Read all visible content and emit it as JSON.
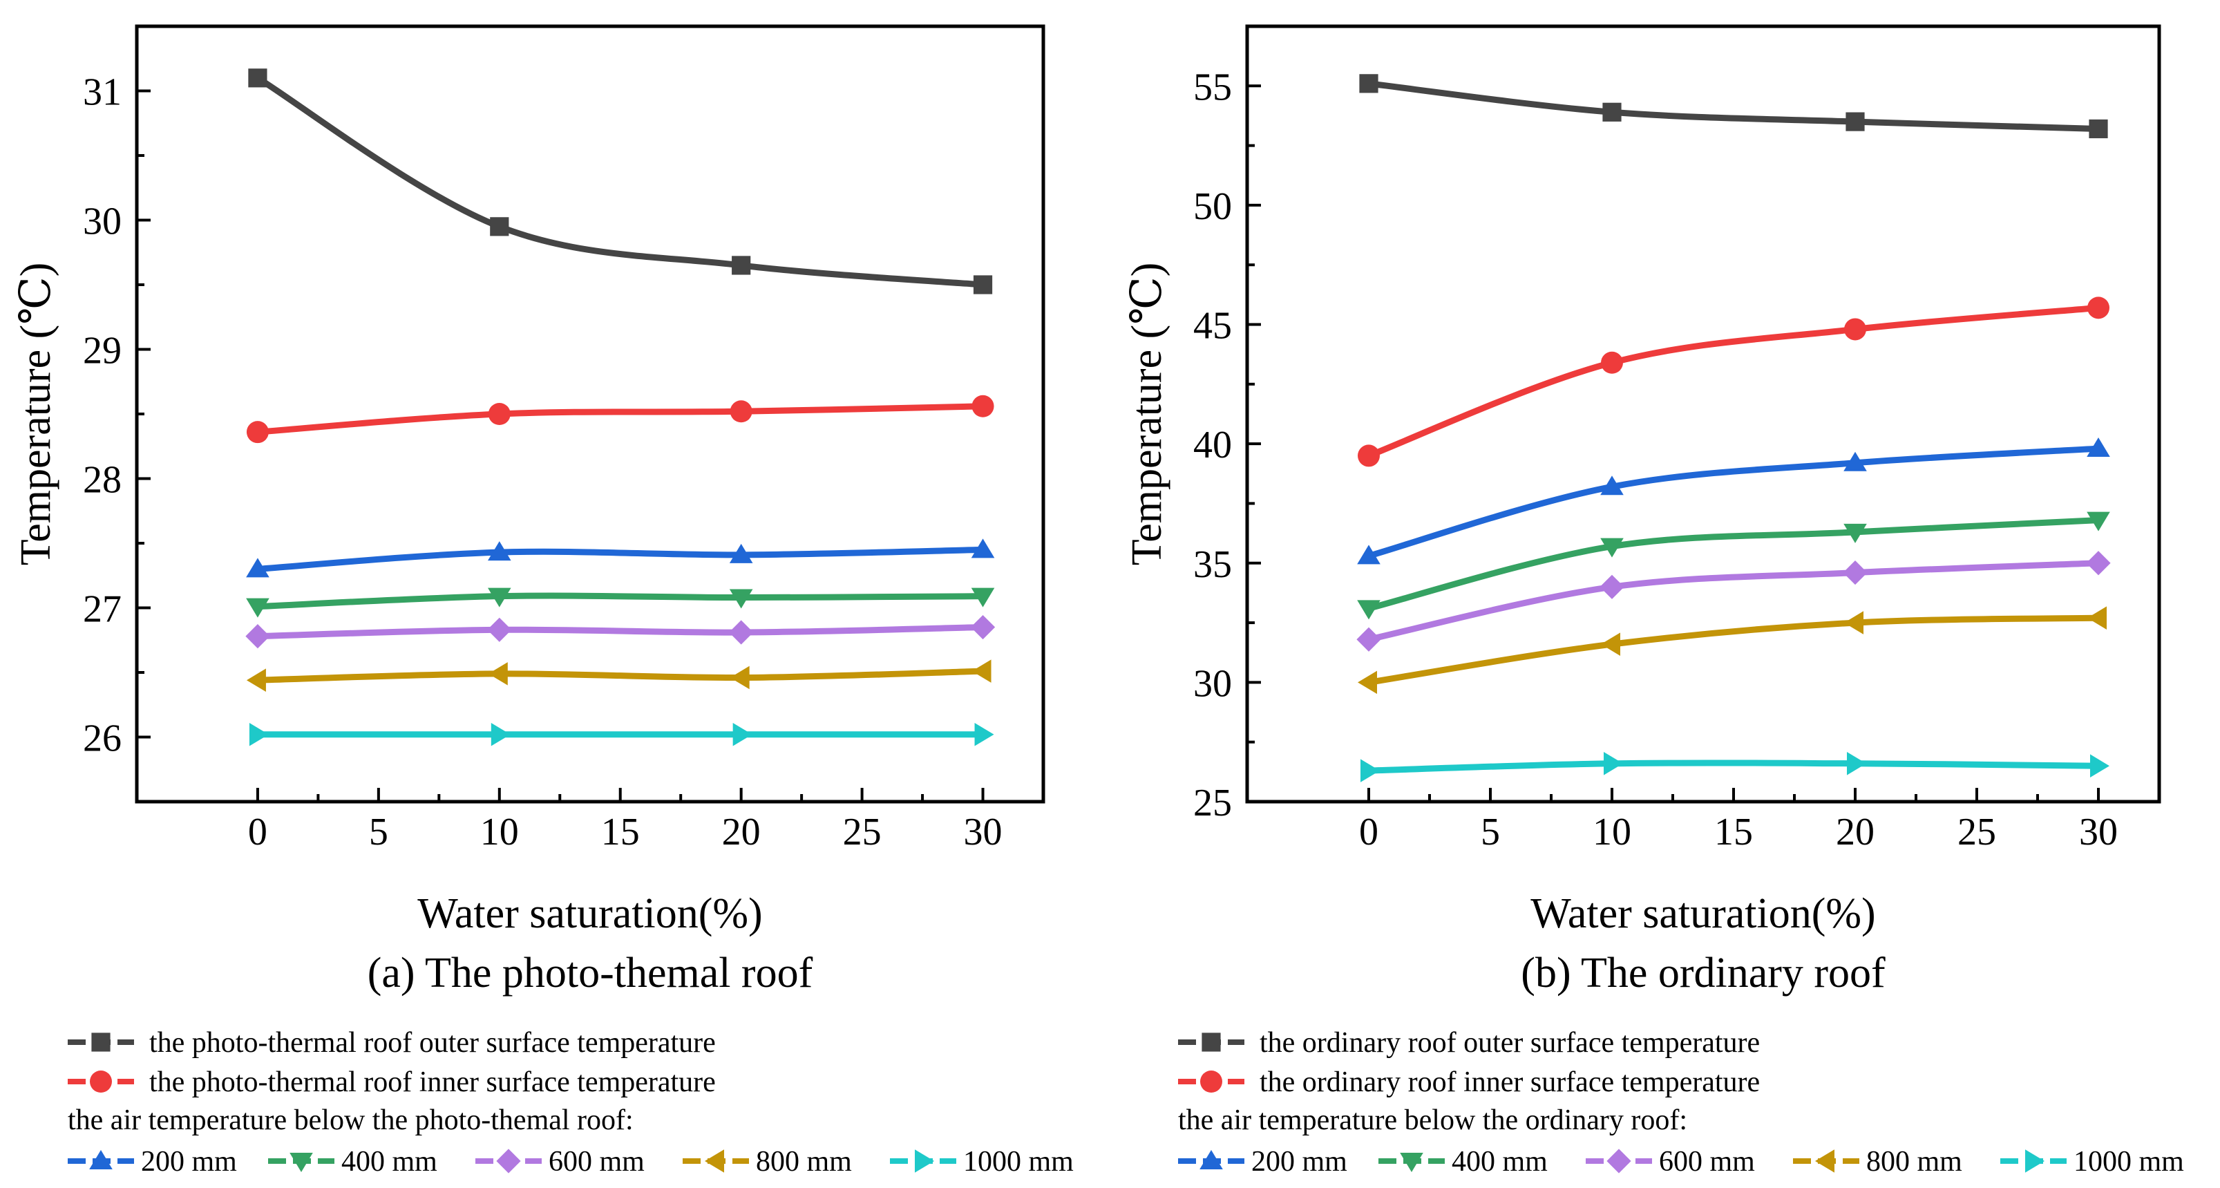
{
  "chart_data": [
    {
      "type": "line",
      "caption": "(a) The photo-themal roof",
      "xlabel": "Water saturation(%)",
      "ylabel": "Temperature (℃)",
      "xlim": [
        -5,
        32.5
      ],
      "ylim": [
        25.5,
        31.5
      ],
      "xticks": [
        "0",
        "5",
        "10",
        "15",
        "20",
        "25",
        "30"
      ],
      "yticks": [
        "26",
        "27",
        "28",
        "29",
        "30",
        "31"
      ],
      "x": [
        0,
        10,
        20,
        30
      ],
      "series": [
        {
          "name": "the photo-thermal  roof outer surface temperature",
          "color": "#454545",
          "marker": "square",
          "values": [
            31.1,
            29.95,
            29.65,
            29.5
          ]
        },
        {
          "name": "the photo-thermal roof inner surface temperature",
          "color": "#ee3b3b",
          "marker": "circle",
          "values": [
            28.36,
            28.5,
            28.52,
            28.56
          ]
        },
        {
          "name": "200 mm",
          "color": "#2067d6",
          "marker": "triangle-up",
          "values": [
            27.3,
            27.43,
            27.41,
            27.45
          ]
        },
        {
          "name": "400 mm",
          "color": "#35a262",
          "marker": "triangle-down",
          "values": [
            27.01,
            27.09,
            27.08,
            27.09
          ]
        },
        {
          "name": "600 mm",
          "color": "#b179e0",
          "marker": "diamond",
          "values": [
            26.78,
            26.83,
            26.81,
            26.85
          ]
        },
        {
          "name": "800 mm",
          "color": "#c39408",
          "marker": "triangle-left",
          "values": [
            26.44,
            26.49,
            26.46,
            26.51
          ]
        },
        {
          "name": "1000 mm",
          "color": "#1ec9c9",
          "marker": "triangle-right",
          "values": [
            26.02,
            26.02,
            26.02,
            26.02
          ]
        }
      ],
      "legend_group_label": "the air temperature below the photo-themal roof:"
    },
    {
      "type": "line",
      "caption": "(b) The ordinary roof",
      "xlabel": "Water saturation(%)",
      "ylabel": "Temperature (℃)",
      "xlim": [
        -5,
        32.5
      ],
      "ylim": [
        25,
        57.5
      ],
      "xticks": [
        "0",
        "5",
        "10",
        "15",
        "20",
        "25",
        "30"
      ],
      "yticks": [
        "25",
        "30",
        "35",
        "40",
        "45",
        "50",
        "55"
      ],
      "x": [
        0,
        10,
        20,
        30
      ],
      "series": [
        {
          "name": "the ordinary roof outer surface temperature",
          "color": "#454545",
          "marker": "square",
          "values": [
            55.1,
            53.9,
            53.5,
            53.2
          ]
        },
        {
          "name": "the ordinary roof inner surface temperature",
          "color": "#ee3b3b",
          "marker": "circle",
          "values": [
            39.5,
            43.4,
            44.8,
            45.7
          ]
        },
        {
          "name": "200 mm",
          "color": "#2067d6",
          "marker": "triangle-up",
          "values": [
            35.3,
            38.2,
            39.2,
            39.8
          ]
        },
        {
          "name": "400 mm",
          "color": "#35a262",
          "marker": "triangle-down",
          "values": [
            33.1,
            35.7,
            36.3,
            36.8
          ]
        },
        {
          "name": "600 mm",
          "color": "#b179e0",
          "marker": "diamond",
          "values": [
            31.8,
            34.0,
            34.6,
            35.0
          ]
        },
        {
          "name": "800 mm",
          "color": "#c39408",
          "marker": "triangle-left",
          "values": [
            30.0,
            31.6,
            32.5,
            32.7
          ]
        },
        {
          "name": "1000 mm",
          "color": "#1ec9c9",
          "marker": "triangle-right",
          "values": [
            26.3,
            26.6,
            26.6,
            26.5
          ]
        }
      ],
      "legend_group_label": "the air temperature below the ordinary roof:"
    }
  ]
}
